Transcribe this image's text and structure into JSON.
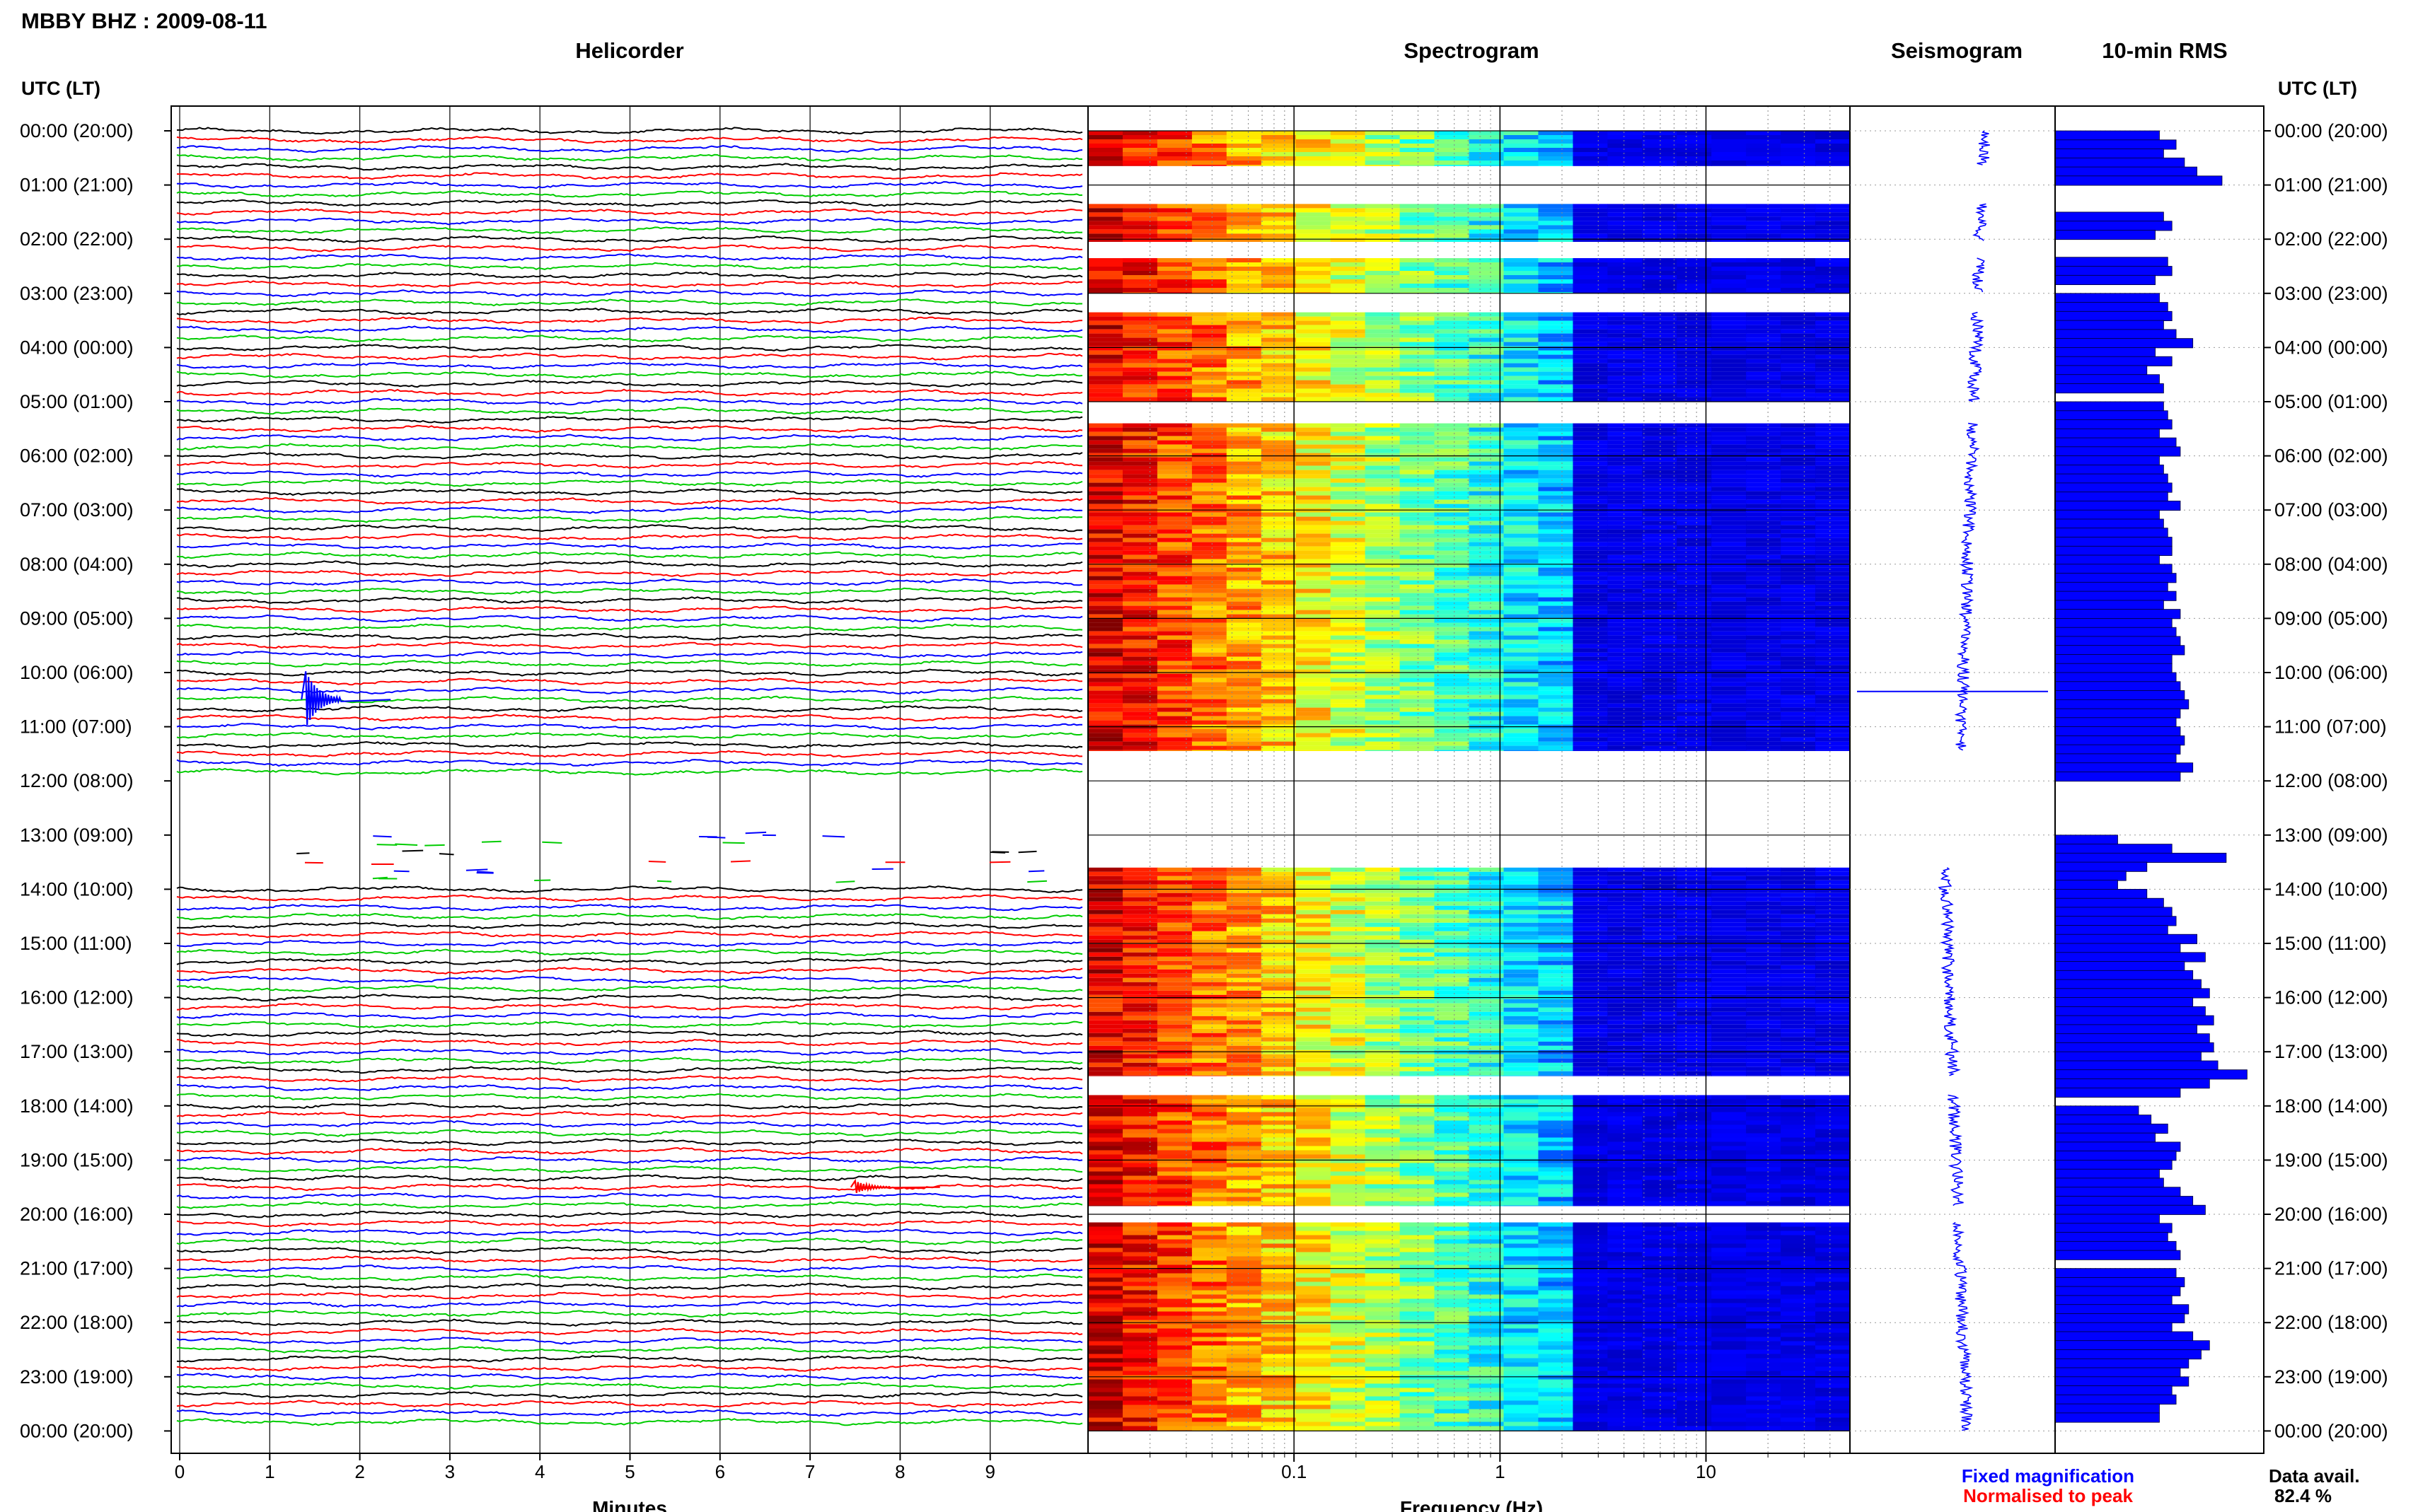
{
  "header": {
    "station_title": "MBBY BHZ : 2009-08-11",
    "utc_label_left": "UTC (LT)",
    "utc_label_right": "UTC (LT)"
  },
  "panels": {
    "helicorder": "Helicorder",
    "spectrogram": "Spectrogram",
    "seismogram": "Seismogram",
    "rms": "10-min RMS"
  },
  "footer": {
    "fixed_magnification": "Fixed magnification",
    "normalised_to_peak": "Normalised to peak",
    "data_avail_label": "Data avail.",
    "data_avail_value": "82.4 %"
  },
  "colors": {
    "trace_cycle": [
      "#000000",
      "#ff0000",
      "#0000ff",
      "#00cc00"
    ],
    "fixed_magnification": "#0000ff",
    "normalised_to_peak": "#ff0000",
    "rms_bar": "#0000ff",
    "seismogram": "#0000ff"
  },
  "chart_data": [
    {
      "type": "line",
      "panel": "helicorder",
      "xlabel": "Minutes",
      "x_ticks": [
        "0",
        "1",
        "2",
        "3",
        "4",
        "5",
        "6",
        "7",
        "8",
        "9"
      ],
      "xlim": [
        0,
        10
      ],
      "hour_labels": [
        "00:00 (20:00)",
        "01:00 (21:00)",
        "02:00 (22:00)",
        "03:00 (23:00)",
        "04:00 (00:00)",
        "05:00 (01:00)",
        "06:00 (02:00)",
        "07:00 (03:00)",
        "08:00 (04:00)",
        "09:00 (05:00)",
        "10:00 (06:00)",
        "11:00 (07:00)",
        "12:00 (08:00)",
        "13:00 (09:00)",
        "14:00 (10:00)",
        "15:00 (11:00)",
        "16:00 (12:00)",
        "17:00 (13:00)",
        "18:00 (14:00)",
        "19:00 (15:00)",
        "20:00 (16:00)",
        "21:00 (17:00)",
        "22:00 (18:00)",
        "23:00 (19:00)",
        "00:00 (20:00)"
      ],
      "traces_per_hour": 6,
      "gap_hours": [
        12
      ],
      "sparse_hour": 13,
      "events": [
        {
          "hour": 10,
          "minute": 1.4,
          "color": "blue"
        },
        {
          "hour": 19,
          "minute": 7.5,
          "color": "red"
        }
      ]
    },
    {
      "type": "heatmap",
      "panel": "spectrogram",
      "xlabel": "Frequency (Hz)",
      "x_ticks": [
        "0.1",
        "1",
        "10"
      ],
      "x_scale": "log",
      "xlim": [
        0.01,
        50
      ],
      "colormap": "jet",
      "data_segments_hours": [
        [
          0,
          0.65
        ],
        [
          1.35,
          2.05
        ],
        [
          2.35,
          3.0
        ],
        [
          3.35,
          5.0
        ],
        [
          5.4,
          11.45
        ],
        [
          13.6,
          17.45
        ],
        [
          17.8,
          19.85
        ],
        [
          20.15,
          24.0
        ]
      ]
    },
    {
      "type": "line",
      "panel": "seismogram",
      "spike_hour": 10.35
    },
    {
      "type": "bar",
      "panel": "rms",
      "xlim": [
        0,
        100
      ],
      "values": [
        [
          50,
          58,
          52,
          62,
          68,
          80,
          null
        ],
        [
          null,
          null,
          null,
          52,
          56,
          48,
          null
        ],
        [
          null,
          null,
          54,
          56,
          48,
          null,
          null
        ],
        [
          50,
          54,
          56,
          52,
          58,
          66,
          null
        ],
        [
          48,
          56,
          44,
          50,
          52,
          null,
          null
        ],
        [
          52,
          54,
          56,
          50,
          58,
          60,
          null
        ],
        [
          50,
          52,
          54,
          56,
          54,
          60,
          null
        ],
        [
          50,
          52,
          54,
          56,
          56,
          50,
          null
        ],
        [
          56,
          58,
          54,
          58,
          52,
          60,
          null
        ],
        [
          56,
          58,
          60,
          62,
          56,
          56,
          null
        ],
        [
          58,
          60,
          62,
          64,
          60,
          58,
          null
        ],
        [
          60,
          62,
          60,
          58,
          66,
          60,
          null
        ],
        [
          null,
          null,
          null,
          null,
          null,
          null,
          null
        ],
        [
          30,
          56,
          82,
          44,
          34,
          30,
          null
        ],
        [
          44,
          52,
          56,
          58,
          54,
          68,
          null
        ],
        [
          60,
          72,
          62,
          66,
          70,
          74,
          null
        ],
        [
          66,
          72,
          76,
          68,
          74,
          76,
          null
        ],
        [
          70,
          78,
          92,
          74,
          60,
          null,
          null
        ],
        [
          40,
          46,
          54,
          48,
          60,
          58,
          null
        ],
        [
          56,
          50,
          52,
          60,
          66,
          72,
          null
        ],
        [
          50,
          56,
          54,
          58,
          60,
          null,
          null
        ],
        [
          58,
          62,
          60,
          56,
          64,
          62,
          null
        ],
        [
          56,
          66,
          74,
          70,
          64,
          60,
          null
        ],
        [
          64,
          56,
          58,
          50,
          50,
          null,
          null
        ]
      ]
    }
  ]
}
